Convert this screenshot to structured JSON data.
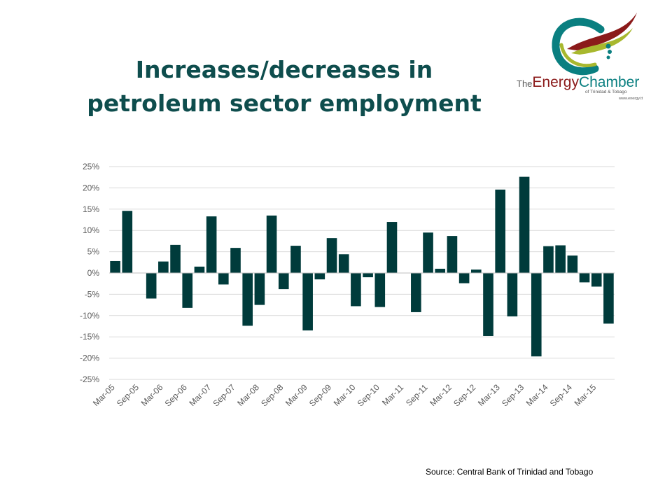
{
  "title": {
    "line1": "Increases/decreases in",
    "line2": "petroleum sector employment"
  },
  "logo": {
    "the": "The",
    "energy": "Energy",
    "chamber": "Chamber",
    "subtitle": "of Trinidad & Tobago",
    "url": "www.energy.tt"
  },
  "source": "Source: Central Bank of Trinidad and Tobago",
  "colors": {
    "bar": "#003b3b",
    "title": "#0e4d4d",
    "grid": "#d9d9d9",
    "axis_text": "#595959",
    "logo_teal": "#0a7f80",
    "logo_red": "#8b1a1a",
    "logo_green": "#a8b82e"
  },
  "chart_data": {
    "type": "bar",
    "title": "Increases/decreases in petroleum sector employment",
    "xlabel": "",
    "ylabel": "",
    "ylim": [
      -25,
      25
    ],
    "yticks": [
      25,
      20,
      15,
      10,
      5,
      0,
      -5,
      -10,
      -15,
      -20,
      -25
    ],
    "ytick_labels": [
      "25%",
      "20%",
      "15%",
      "10%",
      "5%",
      "0%",
      "-5%",
      "-10%",
      "-15%",
      "-20%",
      "-25%"
    ],
    "grid": true,
    "legend": "none",
    "categories": [
      "Mar-05",
      "Jun-05",
      "Sep-05",
      "Dec-05",
      "Mar-06",
      "Jun-06",
      "Sep-06",
      "Dec-06",
      "Mar-07",
      "Jun-07",
      "Sep-07",
      "Dec-07",
      "Mar-08",
      "Jun-08",
      "Sep-08",
      "Dec-08",
      "Mar-09",
      "Jun-09",
      "Sep-09",
      "Dec-09",
      "Mar-10",
      "Jun-10",
      "Sep-10",
      "Dec-10",
      "Mar-11",
      "Jun-11",
      "Sep-11",
      "Dec-11",
      "Mar-12",
      "Jun-12",
      "Sep-12",
      "Dec-12",
      "Mar-13",
      "Jun-13",
      "Sep-13",
      "Dec-13",
      "Mar-14",
      "Jun-14",
      "Sep-14",
      "Dec-14",
      "Mar-15",
      "Jun-15"
    ],
    "shown_tick_labels": [
      "Mar-05",
      "Sep-05",
      "Mar-06",
      "Sep-06",
      "Mar-07",
      "Sep-07",
      "Mar-08",
      "Sep-08",
      "Mar-09",
      "Sep-09",
      "Mar-10",
      "Sep-10",
      "Mar-11",
      "Sep-11",
      "Mar-12",
      "Sep-12",
      "Mar-13",
      "Sep-13",
      "Mar-14",
      "Sep-14",
      "Mar-15"
    ],
    "values": [
      2.8,
      14.6,
      0,
      -6.0,
      2.7,
      6.6,
      -8.2,
      1.5,
      13.3,
      -2.7,
      5.9,
      -12.4,
      -7.5,
      13.5,
      -3.8,
      6.4,
      -13.5,
      -1.5,
      8.2,
      4.4,
      -7.8,
      -1.0,
      -8.0,
      12.0,
      0,
      -9.2,
      9.5,
      1.0,
      8.7,
      -2.4,
      0.8,
      -14.8,
      19.6,
      -10.2,
      22.6,
      -19.6,
      6.3,
      6.5,
      4.1,
      -2.2,
      -3.2,
      -11.9
    ]
  }
}
